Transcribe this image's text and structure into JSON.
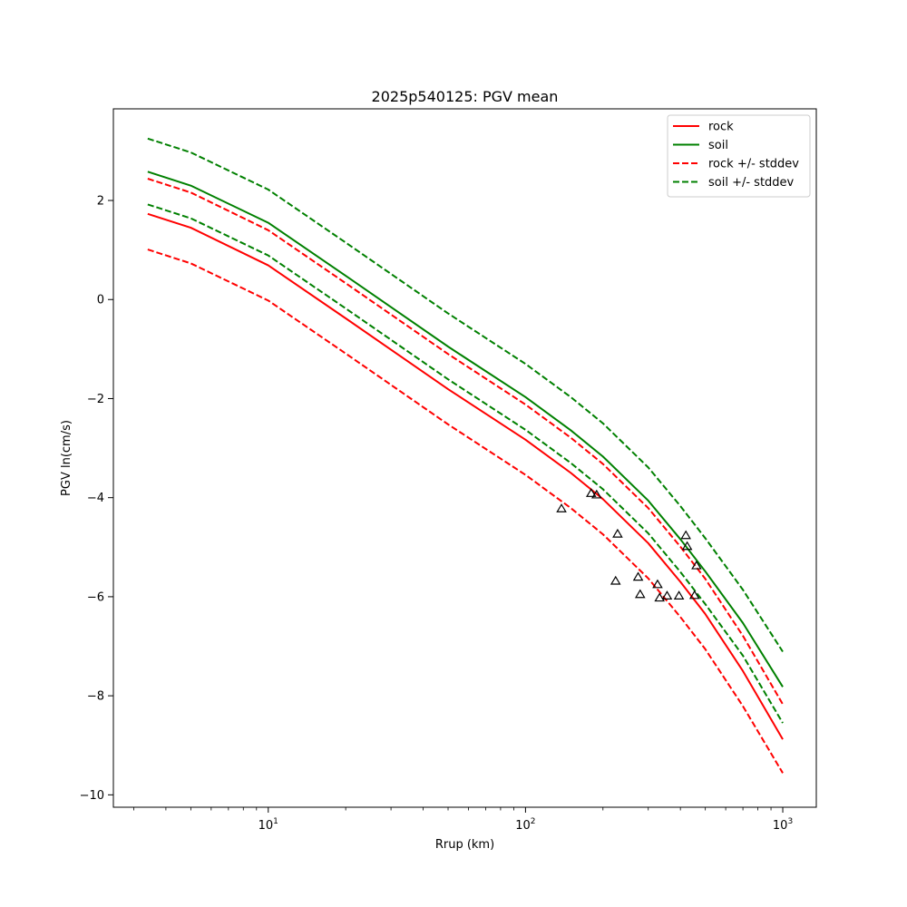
{
  "chart_data": {
    "type": "line",
    "title": "2025p540125: PGV mean",
    "xlabel": "Rrup (km)",
    "ylabel": "PGV ln(cm/s)",
    "xscale": "log",
    "xlim": [
      2.5,
      1350
    ],
    "ylim": [
      -10.25,
      3.85
    ],
    "grid": false,
    "legend_position": "top-right",
    "x_major_ticks": [
      10,
      100,
      1000
    ],
    "x_major_tick_labels": [
      {
        "base": "10",
        "exp": "1"
      },
      {
        "base": "10",
        "exp": "2"
      },
      {
        "base": "10",
        "exp": "3"
      }
    ],
    "y_ticks": [
      2,
      0,
      -2,
      -4,
      -6,
      -8,
      -10
    ],
    "y_tick_labels": [
      "2",
      "0",
      "−2",
      "−4",
      "−6",
      "−8",
      "−10"
    ],
    "x": [
      3.4,
      5,
      10,
      20,
      50,
      100,
      150,
      200,
      300,
      400,
      500,
      700,
      1000
    ],
    "series": [
      {
        "name": "rock",
        "color": "#ff0000",
        "dash": "solid",
        "values": [
          1.73,
          1.45,
          0.69,
          -0.38,
          -1.81,
          -2.83,
          -3.5,
          -4.03,
          -4.92,
          -5.7,
          -6.35,
          -7.5,
          -8.88
        ]
      },
      {
        "name": "soil",
        "color": "#008000",
        "dash": "solid",
        "values": [
          2.58,
          2.3,
          1.55,
          0.48,
          -0.95,
          -1.97,
          -2.64,
          -3.17,
          -4.06,
          -4.84,
          -5.49,
          -6.53,
          -7.82
        ]
      },
      {
        "name": "rock +/- stddev",
        "color": "#ff0000",
        "dash": "dashed",
        "legend": true,
        "values": [
          2.44,
          2.16,
          1.4,
          0.33,
          -1.1,
          -2.12,
          -2.79,
          -3.32,
          -4.21,
          -4.99,
          -5.64,
          -6.79,
          -8.17
        ]
      },
      {
        "name": "rock +/- stddev",
        "color": "#ff0000",
        "dash": "dashed",
        "legend": false,
        "values": [
          1.01,
          0.73,
          -0.02,
          -1.09,
          -2.52,
          -3.54,
          -4.21,
          -4.74,
          -5.63,
          -6.41,
          -7.06,
          -8.21,
          -9.56
        ]
      },
      {
        "name": "soil +/- stddev",
        "color": "#008000",
        "dash": "dashed",
        "legend": true,
        "values": [
          3.25,
          2.97,
          2.22,
          1.15,
          -0.28,
          -1.3,
          -1.97,
          -2.5,
          -3.39,
          -4.17,
          -4.82,
          -5.86,
          -7.11
        ]
      },
      {
        "name": "soil +/- stddev",
        "color": "#008000",
        "dash": "dashed",
        "legend": false,
        "values": [
          1.92,
          1.64,
          0.89,
          -0.18,
          -1.61,
          -2.63,
          -3.3,
          -3.83,
          -4.72,
          -5.5,
          -6.15,
          -7.19,
          -8.55
        ]
      }
    ],
    "observations": {
      "marker": "triangle-open",
      "color": "#000000",
      "points": [
        {
          "x": 138,
          "y": -4.23
        },
        {
          "x": 180,
          "y": -3.92
        },
        {
          "x": 189,
          "y": -3.95
        },
        {
          "x": 224,
          "y": -5.69
        },
        {
          "x": 228,
          "y": -4.74
        },
        {
          "x": 274,
          "y": -5.61
        },
        {
          "x": 279,
          "y": -5.96
        },
        {
          "x": 326,
          "y": -5.76
        },
        {
          "x": 332,
          "y": -6.03
        },
        {
          "x": 355,
          "y": -5.99
        },
        {
          "x": 395,
          "y": -5.99
        },
        {
          "x": 420,
          "y": -4.77
        },
        {
          "x": 425,
          "y": -4.99
        },
        {
          "x": 454,
          "y": -5.98
        },
        {
          "x": 462,
          "y": -5.38
        }
      ]
    }
  }
}
